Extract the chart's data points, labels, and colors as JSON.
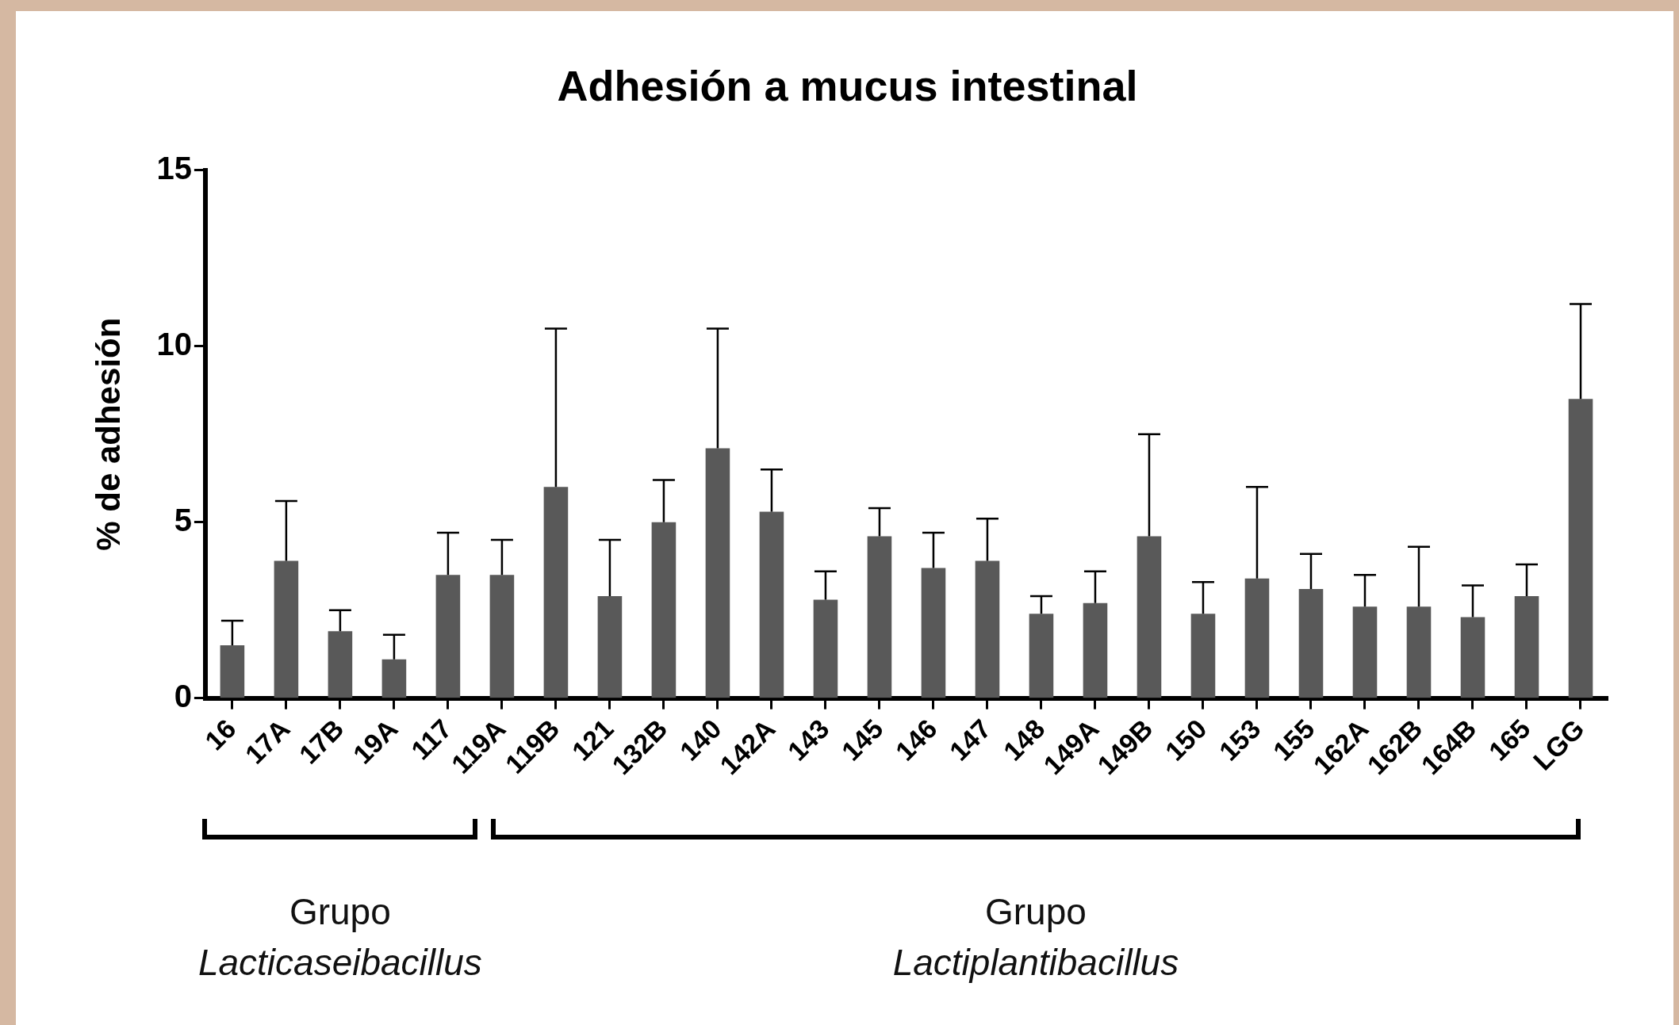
{
  "chart_data": {
    "type": "bar",
    "title": "Adhesión a mucus intestinal",
    "ylabel": "% de adhesión",
    "categories": [
      "16",
      "17A",
      "17B",
      "19A",
      "117",
      "119A",
      "119B",
      "121",
      "132B",
      "140",
      "142A",
      "143",
      "145",
      "146",
      "147",
      "148",
      "149A",
      "149B",
      "150",
      "153",
      "155",
      "162A",
      "162B",
      "164B",
      "165",
      "LGG"
    ],
    "values": [
      1.5,
      3.9,
      1.9,
      1.1,
      3.5,
      3.5,
      6.0,
      2.9,
      5.0,
      7.1,
      5.3,
      2.8,
      4.6,
      3.7,
      3.9,
      2.4,
      2.7,
      4.6,
      2.4,
      3.4,
      3.1,
      2.6,
      2.6,
      2.3,
      2.9,
      8.5
    ],
    "errors": [
      [
        1.5,
        2.2
      ],
      [
        3.9,
        5.6
      ],
      [
        1.9,
        2.5
      ],
      [
        1.1,
        1.8
      ],
      [
        3.5,
        4.7
      ],
      [
        3.5,
        4.5
      ],
      [
        6.0,
        10.5
      ],
      [
        2.9,
        4.5
      ],
      [
        5.0,
        6.2
      ],
      [
        7.1,
        10.5
      ],
      [
        5.3,
        6.5
      ],
      [
        2.8,
        3.6
      ],
      [
        4.6,
        5.4
      ],
      [
        3.7,
        4.7
      ],
      [
        3.9,
        5.1
      ],
      [
        2.4,
        2.9
      ],
      [
        2.7,
        3.6
      ],
      [
        4.6,
        7.5
      ],
      [
        2.4,
        3.3
      ],
      [
        3.4,
        6.0
      ],
      [
        3.1,
        4.1
      ],
      [
        2.6,
        3.5
      ],
      [
        2.6,
        4.3
      ],
      [
        2.3,
        3.2
      ],
      [
        2.9,
        3.8
      ],
      [
        8.5,
        11.2
      ]
    ],
    "color": "#595959",
    "ylim": [
      0,
      15
    ],
    "yticks": [
      0,
      5,
      10,
      15
    ],
    "grid": false,
    "legend": false,
    "annotations": [
      "Grupo Lacticaseibacillus",
      "Grupo Lactiplantibacillus"
    ]
  }
}
